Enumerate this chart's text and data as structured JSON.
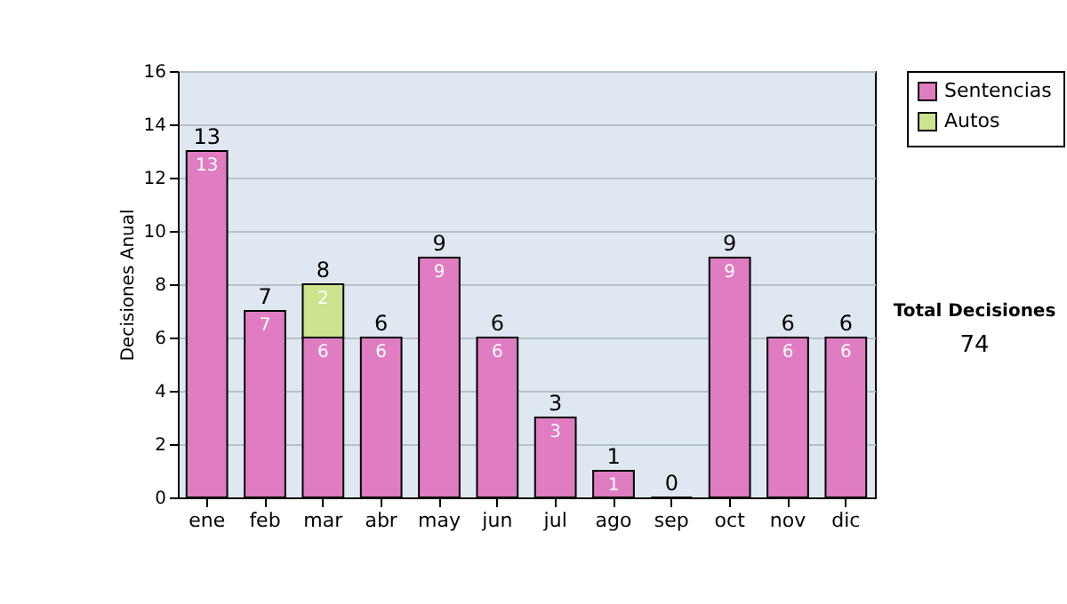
{
  "chart_data": {
    "type": "bar",
    "stacked": true,
    "ylabel": "Decisiones Anual",
    "categories": [
      "ene",
      "feb",
      "mar",
      "abr",
      "may",
      "jun",
      "jul",
      "ago",
      "sep",
      "oct",
      "nov",
      "dic"
    ],
    "series": [
      {
        "name": "Sentencias",
        "color": "#e07cc2",
        "values": [
          13,
          7,
          6,
          6,
          9,
          6,
          3,
          1,
          0,
          9,
          6,
          6
        ],
        "value_labels": [
          "13",
          "7",
          "6",
          "6",
          "9",
          "6",
          "3",
          "1",
          null,
          "9",
          "6",
          "6"
        ]
      },
      {
        "name": "Autos",
        "color": "#cce48e",
        "values": [
          null,
          null,
          2,
          null,
          null,
          null,
          null,
          null,
          null,
          null,
          null,
          null
        ],
        "value_labels": [
          null,
          null,
          "2",
          null,
          null,
          null,
          null,
          null,
          null,
          null,
          null,
          null
        ]
      }
    ],
    "totals": [
      "13",
      "7",
      "8",
      "6",
      "9",
      "6",
      "3",
      "1",
      "0",
      "9",
      "6",
      "6"
    ],
    "ylim": [
      0,
      16
    ],
    "yticks": [
      0,
      2,
      4,
      6,
      8,
      10,
      12,
      14,
      16
    ],
    "grid": "y",
    "legend": "right",
    "annotations": [
      "Total Decisiones",
      "74"
    ]
  }
}
